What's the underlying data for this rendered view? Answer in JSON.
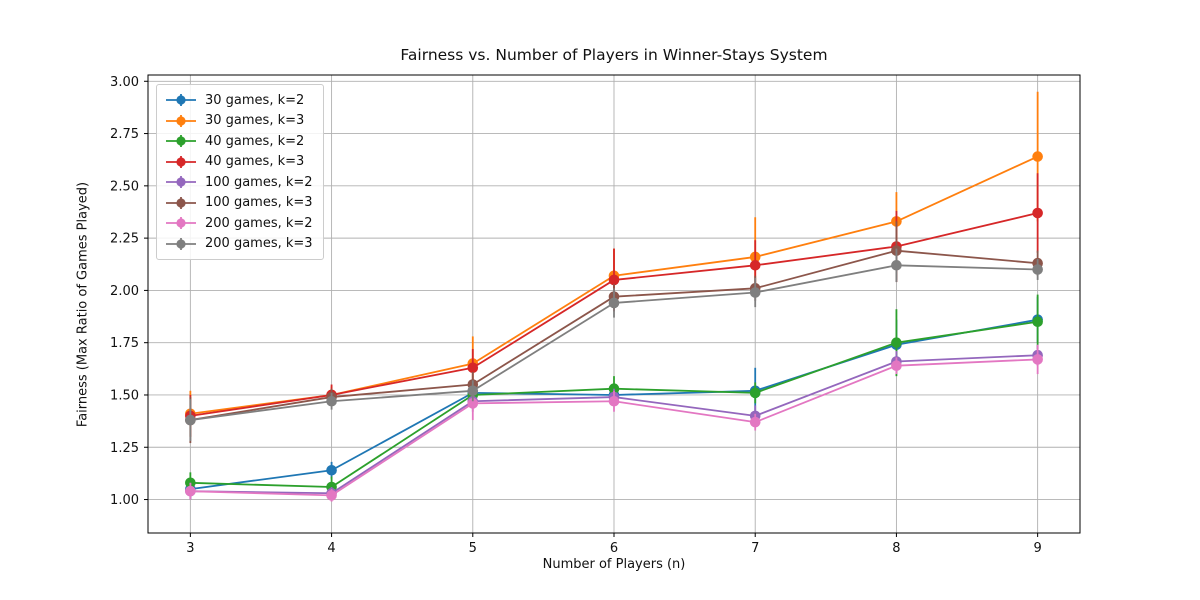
{
  "chart_data": {
    "type": "line",
    "title": "Fairness vs. Number of Players in Winner-Stays System",
    "xlabel": "Number of Players (n)",
    "ylabel": "Fairness (Max Ratio of Games Played)",
    "x": [
      3,
      4,
      5,
      6,
      7,
      8,
      9
    ],
    "xtick_labels": [
      "3",
      "4",
      "5",
      "6",
      "7",
      "8",
      "9"
    ],
    "yticks": [
      1.0,
      1.25,
      1.5,
      1.75,
      2.0,
      2.25,
      2.5,
      2.75,
      3.0
    ],
    "ytick_labels": [
      "1.00",
      "1.25",
      "1.50",
      "1.75",
      "2.00",
      "2.25",
      "2.50",
      "2.75",
      "3.00"
    ],
    "xlim": [
      2.7,
      9.3
    ],
    "ylim": [
      0.84,
      3.03
    ],
    "grid": true,
    "grid_color": "#b0b0b0",
    "legend_position": "upper left",
    "marker": "circle",
    "error_bars": true,
    "series": [
      {
        "name": "30 games, k=2",
        "color": "#1f77b4",
        "values": [
          1.05,
          1.14,
          1.51,
          1.5,
          1.52,
          1.74,
          1.86
        ],
        "errors": [
          0.05,
          0.04,
          0.05,
          0.04,
          0.11,
          0.12,
          0.11
        ]
      },
      {
        "name": "30 games, k=3",
        "color": "#ff7f0e",
        "values": [
          1.41,
          1.5,
          1.65,
          2.07,
          2.16,
          2.33,
          2.64
        ],
        "errors": [
          0.11,
          0.04,
          0.13,
          0.13,
          0.19,
          0.14,
          0.31
        ]
      },
      {
        "name": "40 games, k=2",
        "color": "#2ca02c",
        "values": [
          1.08,
          1.06,
          1.5,
          1.53,
          1.51,
          1.75,
          1.85
        ],
        "errors": [
          0.05,
          0.05,
          0.06,
          0.06,
          0.05,
          0.16,
          0.13
        ]
      },
      {
        "name": "40 games, k=3",
        "color": "#d62728",
        "values": [
          1.4,
          1.5,
          1.63,
          2.05,
          2.12,
          2.21,
          2.37
        ],
        "errors": [
          0.1,
          0.05,
          0.09,
          0.15,
          0.12,
          0.17,
          0.19
        ]
      },
      {
        "name": "100 games, k=2",
        "color": "#9467bd",
        "values": [
          1.04,
          1.03,
          1.47,
          1.49,
          1.4,
          1.66,
          1.69
        ],
        "errors": [
          0.04,
          0.03,
          0.05,
          0.04,
          0.05,
          0.05,
          0.05
        ]
      },
      {
        "name": "100 games, k=3",
        "color": "#8c564b",
        "values": [
          1.38,
          1.49,
          1.55,
          1.97,
          2.01,
          2.19,
          2.13
        ],
        "errors": [
          0.11,
          0.04,
          0.06,
          0.06,
          0.06,
          0.14,
          0.06
        ]
      },
      {
        "name": "200 games, k=2",
        "color": "#e377c2",
        "values": [
          1.04,
          1.02,
          1.46,
          1.47,
          1.37,
          1.64,
          1.67
        ],
        "errors": [
          0.04,
          0.03,
          0.08,
          0.05,
          0.04,
          0.04,
          0.07
        ]
      },
      {
        "name": "200 games, k=3",
        "color": "#7f7f7f",
        "values": [
          1.38,
          1.47,
          1.52,
          1.94,
          1.99,
          2.12,
          2.1
        ],
        "errors": [
          0.1,
          0.04,
          0.05,
          0.07,
          0.07,
          0.08,
          0.05
        ]
      }
    ]
  }
}
